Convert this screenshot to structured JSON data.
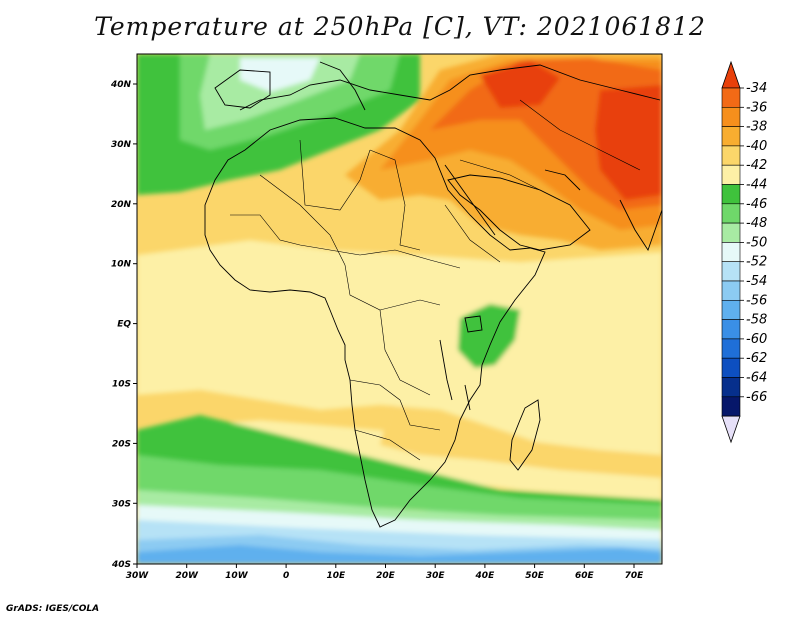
{
  "title": "Temperature at 250hPa [C], VT: 2021061812",
  "credit": "GrADS: IGES/COLA",
  "x_ticks": [
    "30W",
    "20W",
    "10W",
    "0",
    "10E",
    "20E",
    "30E",
    "40E",
    "50E",
    "60E",
    "70E"
  ],
  "y_ticks": [
    "40N",
    "30N",
    "20N",
    "10N",
    "EQ",
    "10S",
    "20S",
    "30S",
    "40S"
  ],
  "colorbar": {
    "labels": [
      "-34",
      "-36",
      "-38",
      "-40",
      "-42",
      "-44",
      "-46",
      "-48",
      "-50",
      "-52",
      "-54",
      "-56",
      "-58",
      "-60",
      "-62",
      "-64",
      "-66"
    ],
    "colors": [
      "#e8400a",
      "#f26a16",
      "#f68f1c",
      "#f8ad30",
      "#fbd66a",
      "#fdf0a6",
      "#3fc23c",
      "#6fd86a",
      "#a8eba3",
      "#e6f9f8",
      "#b6e2f6",
      "#8ccbf2",
      "#5fb0ee",
      "#3a8fe6",
      "#1f6fd8",
      "#0d4fc0",
      "#062f8c",
      "#06176a",
      "#e6e0f8"
    ]
  },
  "map_colors": {
    "c_34": "#e8400a",
    "c_36": "#f26a16",
    "c_38": "#f68f1c",
    "c_40": "#f8ad30",
    "c_42": "#fbd66a",
    "c_44": "#fdf0a6",
    "c_46": "#3fc23c",
    "c_48": "#6fd86a",
    "c_50": "#a8eba3",
    "c_52": "#e6f9f8",
    "c_54": "#b6e2f6",
    "c_56": "#8ccbf2",
    "c_58": "#5fb0ee"
  }
}
